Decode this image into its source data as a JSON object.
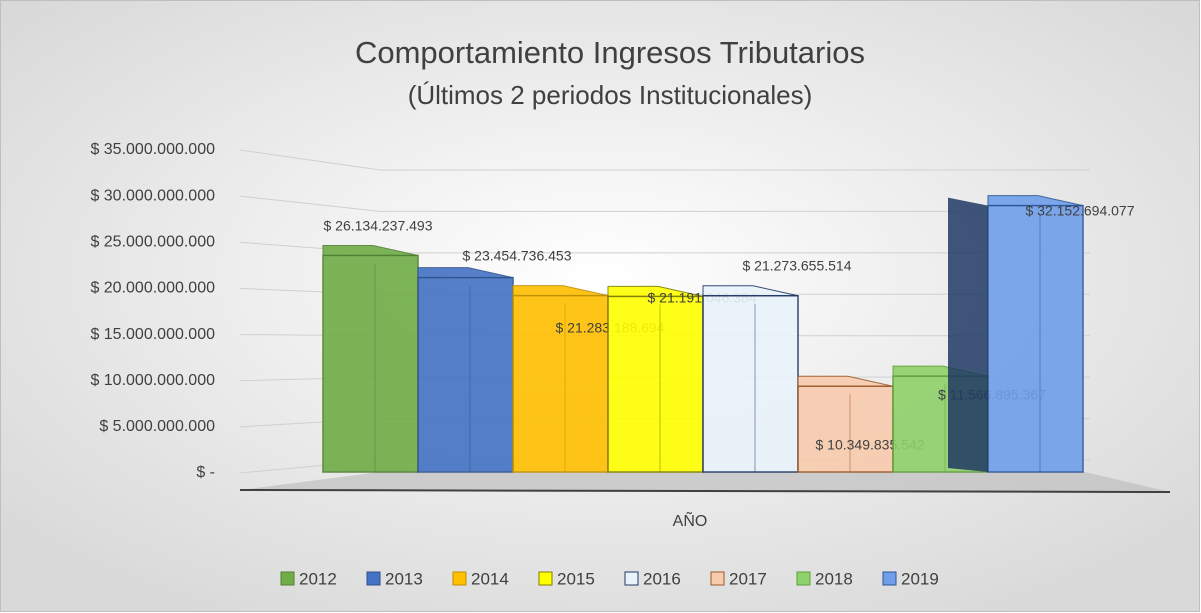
{
  "chart_data": {
    "type": "bar3d",
    "title": "Comportamiento Ingresos Tributarios",
    "subtitle": "(Últimos 2 periodos Institucionales)",
    "categories": [
      "AÑO"
    ],
    "series": [
      {
        "name": "2012",
        "color": "#70ad47",
        "values": [
          26134237493
        ],
        "value_labels": [
          "$ 26.134.237.493"
        ]
      },
      {
        "name": "2013",
        "color": "#4472c4",
        "values": [
          23454736453
        ],
        "value_labels": [
          "$ 23.454.736.453"
        ]
      },
      {
        "name": "2014",
        "color": "#ffc000",
        "values": [
          21283188694
        ],
        "value_labels": [
          "$ 21.283.188.694"
        ]
      },
      {
        "name": "2015",
        "color": "#ffff00",
        "values": [
          21191046384
        ],
        "value_labels": [
          "$ 21.191.046.384"
        ]
      },
      {
        "name": "2016",
        "color": "#eaf3fb",
        "values": [
          21273655514
        ],
        "value_labels": [
          "$ 21.273.655.514"
        ]
      },
      {
        "name": "2017",
        "color": "#f8cbad",
        "values": [
          10349835542
        ],
        "value_labels": [
          "$ 10.349.835.542"
        ]
      },
      {
        "name": "2018",
        "color": "#8fd16a",
        "values": [
          11566895367
        ],
        "value_labels": [
          "$ 11.566.895.367"
        ]
      },
      {
        "name": "2019",
        "color": "#6f9fea",
        "values": [
          32152694077
        ],
        "value_labels": [
          "$ 32.152.694.077"
        ]
      }
    ],
    "ylim": [
      0,
      35000000000
    ],
    "yticks": [
      {
        "value": 0,
        "label": "$ -"
      },
      {
        "value": 5000000000,
        "label": "$ 5.000.000.000"
      },
      {
        "value": 10000000000,
        "label": "$ 10.000.000.000"
      },
      {
        "value": 15000000000,
        "label": "$ 15.000.000.000"
      },
      {
        "value": 20000000000,
        "label": "$ 20.000.000.000"
      },
      {
        "value": 25000000000,
        "label": "$ 25.000.000.000"
      },
      {
        "value": 30000000000,
        "label": "$ 30.000.000.000"
      },
      {
        "value": 35000000000,
        "label": "$ 35.000.000.000"
      }
    ],
    "grid": true,
    "legend": "bottom"
  }
}
